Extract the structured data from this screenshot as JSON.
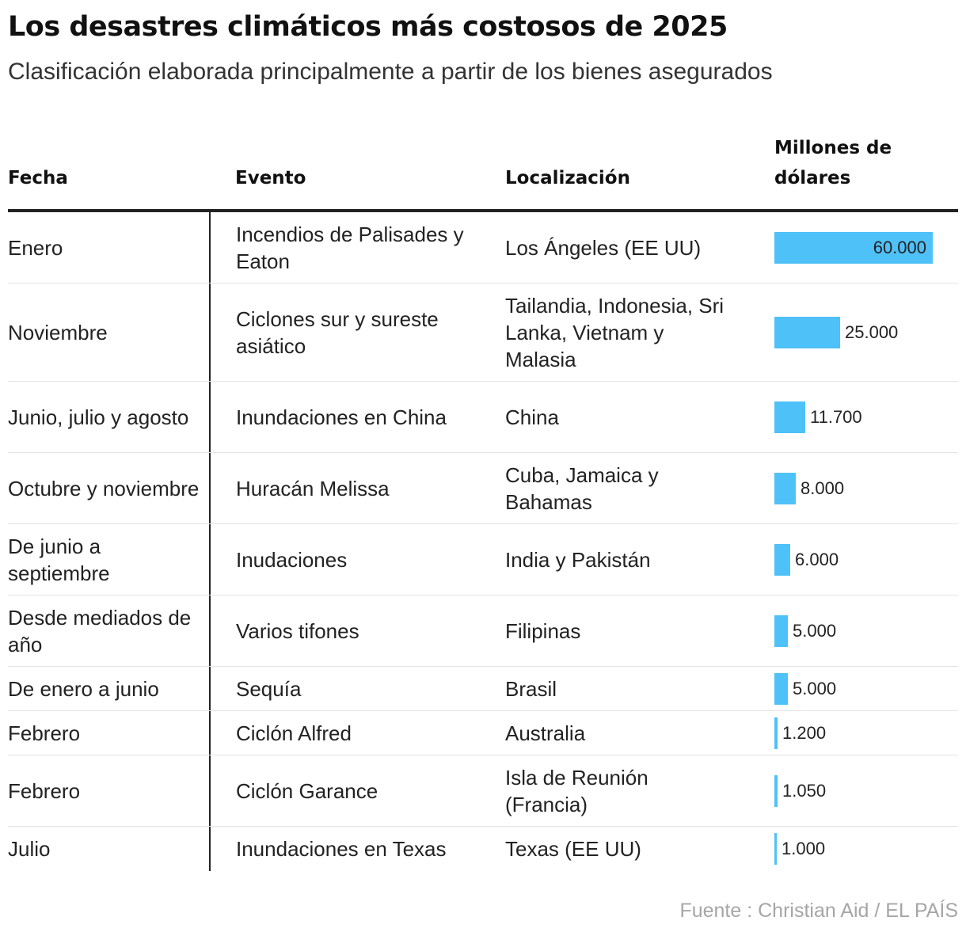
{
  "title": "Los desastres climáticos más costosos de 2025",
  "subtitle": "Clasificación elaborada principalmente a partir de los bienes asegurados",
  "headers": {
    "date": "Fecha",
    "event": "Evento",
    "location": "Localización",
    "value": "Millones de dólares"
  },
  "source": "Fuente : Christian Aid / EL PAÍS",
  "colors": {
    "bar": "#4fc1f9",
    "text": "#222222",
    "source": "#a6a6a6"
  },
  "chart_data": {
    "type": "table",
    "title": "Los desastres climáticos más costosos de 2025",
    "subtitle": "Clasificación elaborada principalmente a partir de los bienes asegurados",
    "columns": [
      "Fecha",
      "Evento",
      "Localización",
      "Millones de dólares"
    ],
    "max_value": 60000,
    "rows": [
      {
        "date": "Enero",
        "event": "Incendios de Palisades y Eaton",
        "location": "Los Ángeles (EE UU)",
        "value": 60000,
        "value_label": "60.000"
      },
      {
        "date": "Noviembre",
        "event": "Ciclones sur y sureste asiático",
        "location": "Tailandia, Indonesia, Sri Lanka, Vietnam y Malasia",
        "value": 25000,
        "value_label": "25.000"
      },
      {
        "date": "Junio, julio y agosto",
        "event": "Inundaciones en China",
        "location": "China",
        "value": 11700,
        "value_label": "11.700"
      },
      {
        "date": "Octubre y noviembre",
        "event": "Huracán Melissa",
        "location": "Cuba, Jamaica y Bahamas",
        "value": 8000,
        "value_label": "8.000"
      },
      {
        "date": "De junio a septiembre",
        "event": "Inudaciones",
        "location": "India y Pakistán",
        "value": 6000,
        "value_label": "6.000"
      },
      {
        "date": "Desde mediados de año",
        "event": "Varios tifones",
        "location": "Filipinas",
        "value": 5000,
        "value_label": "5.000"
      },
      {
        "date": "De enero a junio",
        "event": "Sequía",
        "location": "Brasil",
        "value": 5000,
        "value_label": "5.000"
      },
      {
        "date": "Febrero",
        "event": "Ciclón Alfred",
        "location": "Australia",
        "value": 1200,
        "value_label": "1.200"
      },
      {
        "date": "Febrero",
        "event": "Ciclón Garance",
        "location": "Isla de Reunión (Francia)",
        "value": 1050,
        "value_label": "1.050"
      },
      {
        "date": "Julio",
        "event": "Inundaciones en Texas",
        "location": "Texas (EE UU)",
        "value": 1000,
        "value_label": "1.000"
      }
    ]
  }
}
